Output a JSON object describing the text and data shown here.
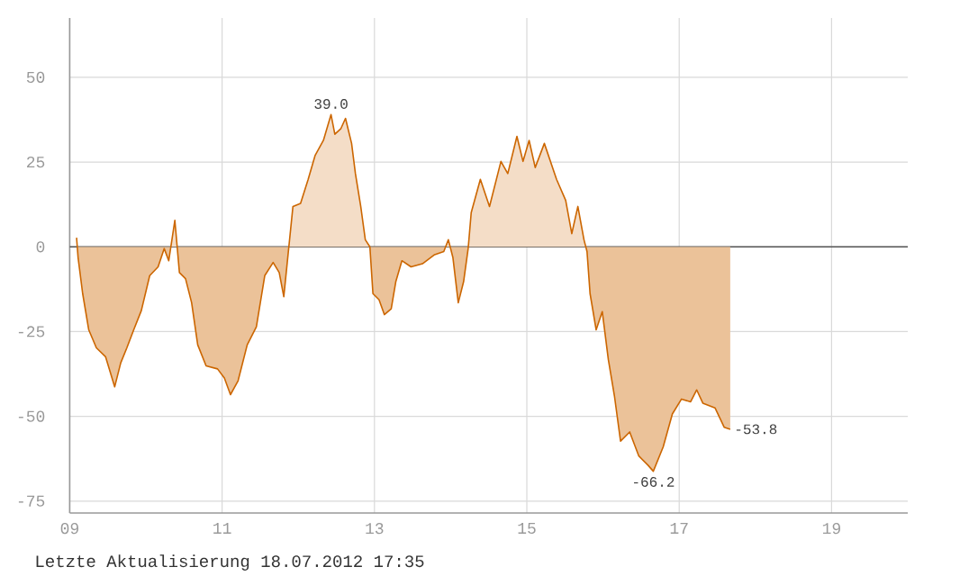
{
  "chart_data": {
    "type": "area",
    "x": [
      9.09,
      9.11,
      9.17,
      9.25,
      9.35,
      9.47,
      9.59,
      9.67,
      9.75,
      9.84,
      9.94,
      10.05,
      10.16,
      10.24,
      10.3,
      10.38,
      10.44,
      10.52,
      10.6,
      10.68,
      10.79,
      10.94,
      11.03,
      11.11,
      11.21,
      11.33,
      11.45,
      11.56,
      11.67,
      11.75,
      11.81,
      11.87,
      11.93,
      12.03,
      12.13,
      12.22,
      12.33,
      12.43,
      12.48,
      12.56,
      12.62,
      12.7,
      12.75,
      12.82,
      12.88,
      12.94,
      12.98,
      13.06,
      13.13,
      13.22,
      13.28,
      13.36,
      13.48,
      13.63,
      13.79,
      13.91,
      13.97,
      14.03,
      14.1,
      14.17,
      14.23,
      14.27,
      14.39,
      14.51,
      14.66,
      14.75,
      14.87,
      14.95,
      15.03,
      15.11,
      15.23,
      15.39,
      15.51,
      15.59,
      15.67,
      15.75,
      15.79,
      15.83,
      15.91,
      15.99,
      16.07,
      16.15,
      16.23,
      16.35,
      16.47,
      16.59,
      16.66,
      16.79,
      16.91,
      17.03,
      17.15,
      17.23,
      17.31,
      17.47,
      17.59,
      17.67
    ],
    "series": [
      {
        "color": "#cc6600",
        "values": [
          2.7,
          -3.2,
          -13.8,
          -24.5,
          -29.8,
          -32.4,
          -41.3,
          -34.2,
          -29.8,
          -24.5,
          -18.8,
          -8.5,
          -5.9,
          -0.5,
          -4.1,
          7.8,
          -7.6,
          -9.4,
          -16.5,
          -28.9,
          -35.1,
          -36.0,
          -38.7,
          -43.6,
          -39.5,
          -28.9,
          -23.6,
          -8.5,
          -4.6,
          -7.6,
          -14.7,
          -1.4,
          11.9,
          12.8,
          19.9,
          26.9,
          31.4,
          39.0,
          33.2,
          34.9,
          37.9,
          30.5,
          21.6,
          11.9,
          2.1,
          0,
          -13.8,
          -15.6,
          -20.0,
          -18.3,
          -10.3,
          -4.1,
          -5.9,
          -5.0,
          -2.3,
          -1.4,
          2.1,
          -3.2,
          -16.5,
          -10.3,
          -0.5,
          10.1,
          19.9,
          11.9,
          25.2,
          21.6,
          32.6,
          25.2,
          31.4,
          23.4,
          30.5,
          19.9,
          13.7,
          3.9,
          11.9,
          2.1,
          -1.4,
          -13.8,
          -24.5,
          -19.1,
          -33.3,
          -44.0,
          -57.3,
          -54.6,
          -61.7,
          -64.4,
          -66.2,
          -59.0,
          -49.3,
          -44.9,
          -45.7,
          -42.2,
          -46.1,
          -47.5,
          -53.2,
          -53.8
        ]
      }
    ],
    "xlim": [
      9,
      20
    ],
    "ylim": [
      -78.5,
      67.5
    ],
    "xticks": [
      {
        "value": 9,
        "label": "09"
      },
      11,
      13,
      15,
      17,
      19
    ],
    "yticks": [
      -75,
      -50,
      -25,
      0,
      25,
      50
    ],
    "grid": true,
    "marker": "none",
    "line_style": "solid",
    "ref_lines": [
      {
        "axis": "y",
        "value": 0,
        "color": "#555555"
      }
    ],
    "annotations": [
      {
        "text": "39.0",
        "x": 12.43,
        "y": 39.0
      },
      {
        "text": "-66.2",
        "x": 16.66,
        "y": -66.2
      },
      {
        "text": "-53.8",
        "x": 17.67,
        "y": -53.8
      },
      "Letzte Aktualisierung 18.07.2012 17:35"
    ]
  }
}
